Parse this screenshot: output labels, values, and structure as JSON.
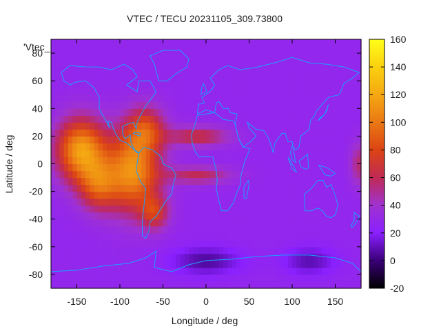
{
  "chart_data": {
    "type": "heatmap",
    "title": "VTEC / TECU 20231105_309.73800",
    "xlabel": "Longitude / deg",
    "ylabel": "Latitude / deg",
    "series_key": "'Vtec_",
    "xlim": [
      -180,
      180
    ],
    "ylim": [
      -90,
      90
    ],
    "x_ticks": [
      -150,
      -100,
      -50,
      0,
      50,
      100,
      150
    ],
    "y_ticks": [
      -80,
      -60,
      -40,
      -20,
      0,
      20,
      40,
      60,
      80
    ],
    "x_tick_labels": [
      "-150",
      "-100",
      "-50",
      "0",
      "50",
      "100",
      "150"
    ],
    "y_tick_labels": [
      "-80",
      "-60",
      "-40",
      "-20",
      "0",
      "20",
      "40",
      "60",
      "80"
    ],
    "colorbar": {
      "min": -20,
      "max": 160,
      "ticks": [
        -20,
        0,
        20,
        40,
        60,
        80,
        100,
        120,
        140,
        160
      ],
      "tick_labels": [
        "-20",
        "0",
        "20",
        "40",
        "60",
        "80",
        "100",
        "120",
        "140",
        "160"
      ]
    },
    "background_vtec": 28,
    "field_peaks": [
      {
        "region": "central-pacific-equator",
        "lon": -145,
        "lat": 10,
        "vtec": 115,
        "spread_lon": 28,
        "spread_lat": 22
      },
      {
        "region": "south-america-north",
        "lon": -85,
        "lat": -5,
        "vtec": 110,
        "spread_lon": 30,
        "spread_lat": 28
      },
      {
        "region": "west-pacific-south",
        "lon": -125,
        "lat": -15,
        "vtec": 80,
        "spread_lon": 22,
        "spread_lat": 18
      },
      {
        "region": "caribbean-north",
        "lon": -70,
        "lat": 25,
        "vtec": 75,
        "spread_lon": 22,
        "spread_lat": 16
      },
      {
        "region": "south-america-south",
        "lon": -60,
        "lat": -35,
        "vtec": 70,
        "spread_lon": 16,
        "spread_lat": 12
      },
      {
        "region": "north-atlantic-band",
        "lon": -10,
        "lat": 20,
        "vtec": 65,
        "spread_lon": 35,
        "spread_lat": 7
      },
      {
        "region": "south-atlantic-band",
        "lon": -10,
        "lat": -8,
        "vtec": 60,
        "spread_lon": 38,
        "spread_lat": 6
      },
      {
        "region": "indian-ocean-west",
        "lon": 120,
        "lat": -70,
        "vtec": 8,
        "spread_lon": 30,
        "spread_lat": 10
      },
      {
        "region": "southern-ocean-low",
        "lon": 0,
        "lat": -70,
        "vtec": 5,
        "spread_lon": 40,
        "spread_lat": 10
      },
      {
        "region": "east-edge-bump",
        "lon": 178,
        "lat": 0,
        "vtec": 55,
        "spread_lon": 10,
        "spread_lat": 15
      }
    ],
    "colormap_stops": [
      {
        "value": -20,
        "color": "#000000"
      },
      {
        "value": 0,
        "color": "#3a0078"
      },
      {
        "value": 20,
        "color": "#8a20ff"
      },
      {
        "value": 40,
        "color": "#a032d0"
      },
      {
        "value": 60,
        "color": "#c02a55"
      },
      {
        "value": 80,
        "color": "#dc4414"
      },
      {
        "value": 100,
        "color": "#ea7814"
      },
      {
        "value": 120,
        "color": "#f5a812"
      },
      {
        "value": 140,
        "color": "#fad00e"
      },
      {
        "value": 160,
        "color": "#ffff1a"
      }
    ],
    "coastline_color": "#1aa0ff"
  }
}
